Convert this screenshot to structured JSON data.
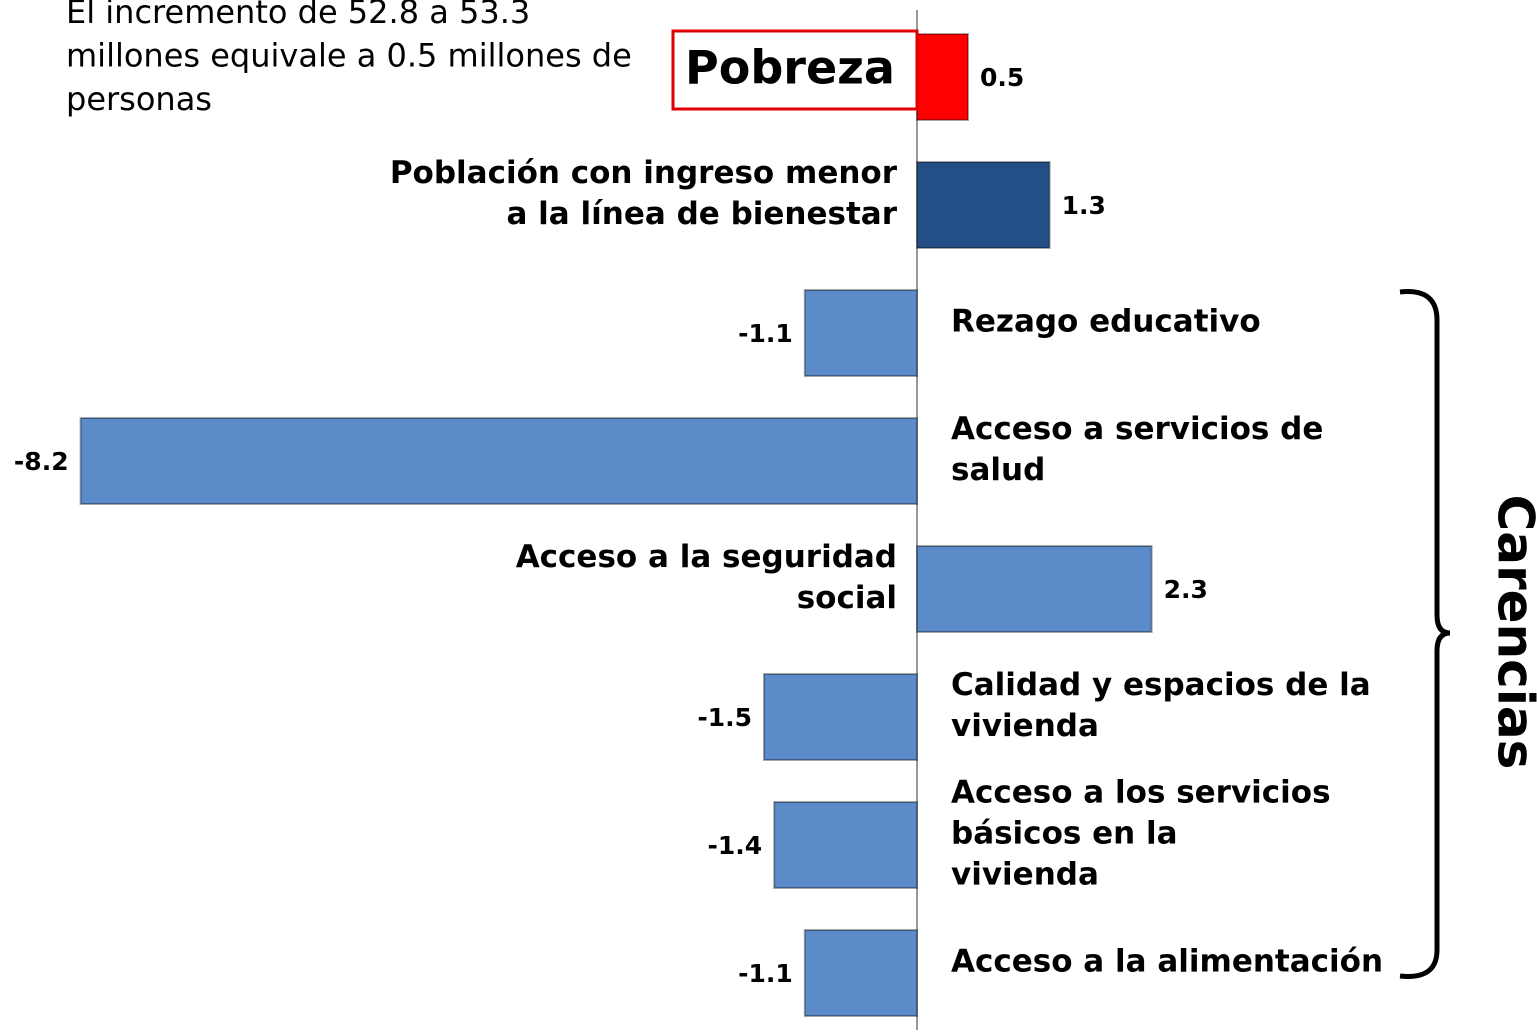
{
  "chart_data": {
    "type": "bar",
    "orientation": "horizontal",
    "annotation": [
      "El incremento de 52.8  a 53.3",
      "millones equivale a 0.5 millones de",
      "personas"
    ],
    "group_label": "Carencias",
    "categories": [
      [
        "Pobreza"
      ],
      [
        "Población con ingreso menor",
        "a la línea de bienestar"
      ],
      [
        "Rezago educativo"
      ],
      [
        "Acceso a servicios de",
        "salud"
      ],
      [
        "Acceso a  la seguridad",
        "social"
      ],
      [
        "Calidad y espacios de la",
        "vivienda"
      ],
      [
        "Acceso a los servicios",
        "básicos en la",
        "vivienda"
      ],
      [
        "Acceso a la alimentación"
      ]
    ],
    "values": [
      0.5,
      1.3,
      -1.1,
      -8.2,
      2.3,
      -1.5,
      -1.4,
      -1.1
    ],
    "colors": [
      "#ff0000",
      "#244f86",
      "#5b8bc9",
      "#5b8bc9",
      "#5b8bc9",
      "#5b8bc9",
      "#5b8bc9",
      "#5b8bc9"
    ]
  }
}
